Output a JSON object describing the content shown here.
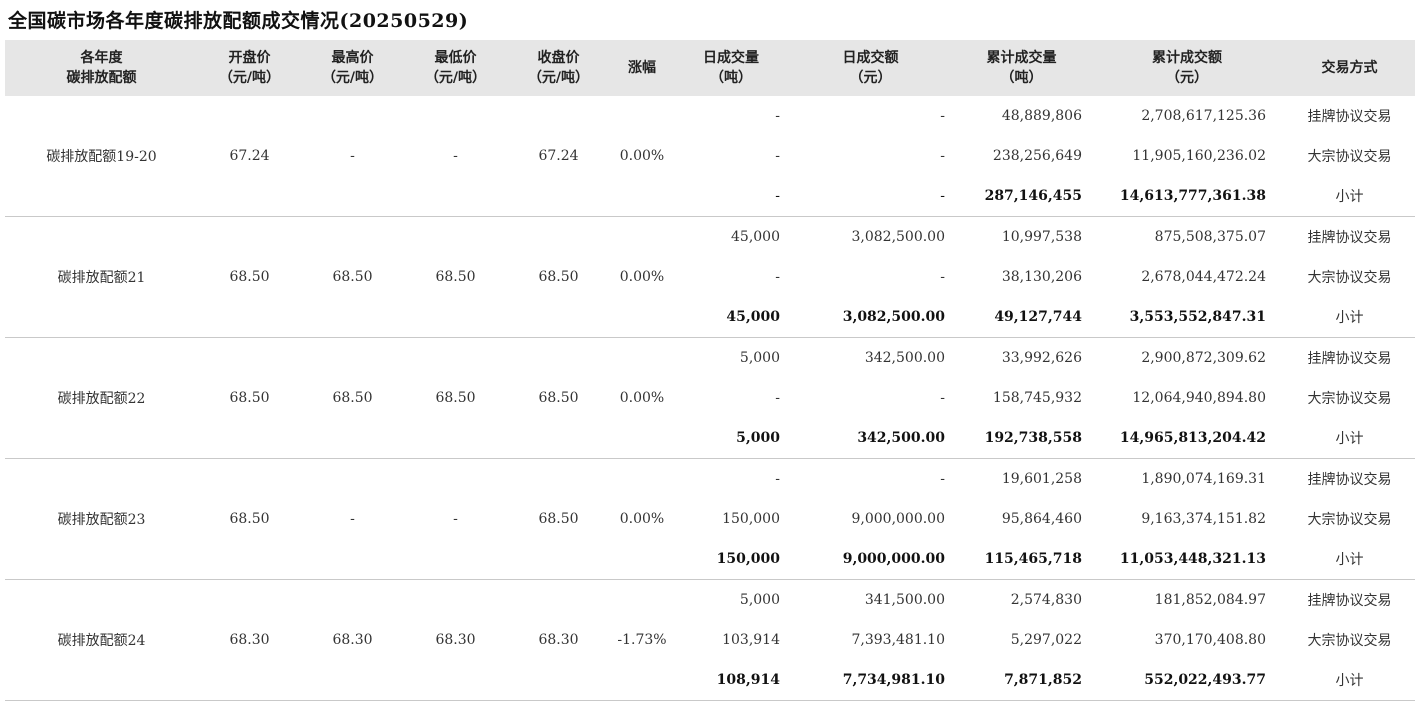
{
  "title": "全国碳市场各年度碳排放配额成交情况(20250529)",
  "headers": {
    "year_l1": "各年度",
    "year_l2": "碳排放配额",
    "open_l1": "开盘价",
    "open_l2": "（元/吨）",
    "high_l1": "最高价",
    "high_l2": "（元/吨）",
    "low_l1": "最低价",
    "low_l2": "（元/吨）",
    "close_l1": "收盘价",
    "close_l2": "（元/吨）",
    "chg": "涨幅",
    "dvol_l1": "日成交量",
    "dvol_l2": "（吨）",
    "damt_l1": "日成交额",
    "damt_l2": "（元）",
    "cvol_l1": "累计成交量",
    "cvol_l2": "（吨）",
    "camt_l1": "累计成交额",
    "camt_l2": "（元）",
    "method": "交易方式"
  },
  "groups": [
    {
      "name": "碳排放配额19-20",
      "open": "67.24",
      "high": "-",
      "low": "-",
      "close": "67.24",
      "change": "0.00%",
      "rows": [
        {
          "dvol": "-",
          "damt": "-",
          "cvol": "48,889,806",
          "camt": "2,708,617,125.36",
          "method": "挂牌协议交易"
        },
        {
          "dvol": "-",
          "damt": "-",
          "cvol": "238,256,649",
          "camt": "11,905,160,236.02",
          "method": "大宗协议交易"
        },
        {
          "dvol": "-",
          "damt": "-",
          "cvol": "287,146,455",
          "camt": "14,613,777,361.38",
          "method": "小计"
        }
      ]
    },
    {
      "name": "碳排放配额21",
      "open": "68.50",
      "high": "68.50",
      "low": "68.50",
      "close": "68.50",
      "change": "0.00%",
      "rows": [
        {
          "dvol": "45,000",
          "damt": "3,082,500.00",
          "cvol": "10,997,538",
          "camt": "875,508,375.07",
          "method": "挂牌协议交易"
        },
        {
          "dvol": "-",
          "damt": "-",
          "cvol": "38,130,206",
          "camt": "2,678,044,472.24",
          "method": "大宗协议交易"
        },
        {
          "dvol": "45,000",
          "damt": "3,082,500.00",
          "cvol": "49,127,744",
          "camt": "3,553,552,847.31",
          "method": "小计"
        }
      ]
    },
    {
      "name": "碳排放配额22",
      "open": "68.50",
      "high": "68.50",
      "low": "68.50",
      "close": "68.50",
      "change": "0.00%",
      "rows": [
        {
          "dvol": "5,000",
          "damt": "342,500.00",
          "cvol": "33,992,626",
          "camt": "2,900,872,309.62",
          "method": "挂牌协议交易"
        },
        {
          "dvol": "-",
          "damt": "-",
          "cvol": "158,745,932",
          "camt": "12,064,940,894.80",
          "method": "大宗协议交易"
        },
        {
          "dvol": "5,000",
          "damt": "342,500.00",
          "cvol": "192,738,558",
          "camt": "14,965,813,204.42",
          "method": "小计"
        }
      ]
    },
    {
      "name": "碳排放配额23",
      "open": "68.50",
      "high": "-",
      "low": "-",
      "close": "68.50",
      "change": "0.00%",
      "rows": [
        {
          "dvol": "-",
          "damt": "-",
          "cvol": "19,601,258",
          "camt": "1,890,074,169.31",
          "method": "挂牌协议交易"
        },
        {
          "dvol": "150,000",
          "damt": "9,000,000.00",
          "cvol": "95,864,460",
          "camt": "9,163,374,151.82",
          "method": "大宗协议交易"
        },
        {
          "dvol": "150,000",
          "damt": "9,000,000.00",
          "cvol": "115,465,718",
          "camt": "11,053,448,321.13",
          "method": "小计"
        }
      ]
    },
    {
      "name": "碳排放配额24",
      "open": "68.30",
      "high": "68.30",
      "low": "68.30",
      "close": "68.30",
      "change": "-1.73%",
      "rows": [
        {
          "dvol": "5,000",
          "damt": "341,500.00",
          "cvol": "2,574,830",
          "camt": "181,852,084.97",
          "method": "挂牌协议交易"
        },
        {
          "dvol": "103,914",
          "damt": "7,393,481.10",
          "cvol": "5,297,022",
          "camt": "370,170,408.80",
          "method": "大宗协议交易"
        },
        {
          "dvol": "108,914",
          "damt": "7,734,981.10",
          "cvol": "7,871,852",
          "camt": "552,022,493.77",
          "method": "小计"
        }
      ]
    }
  ]
}
